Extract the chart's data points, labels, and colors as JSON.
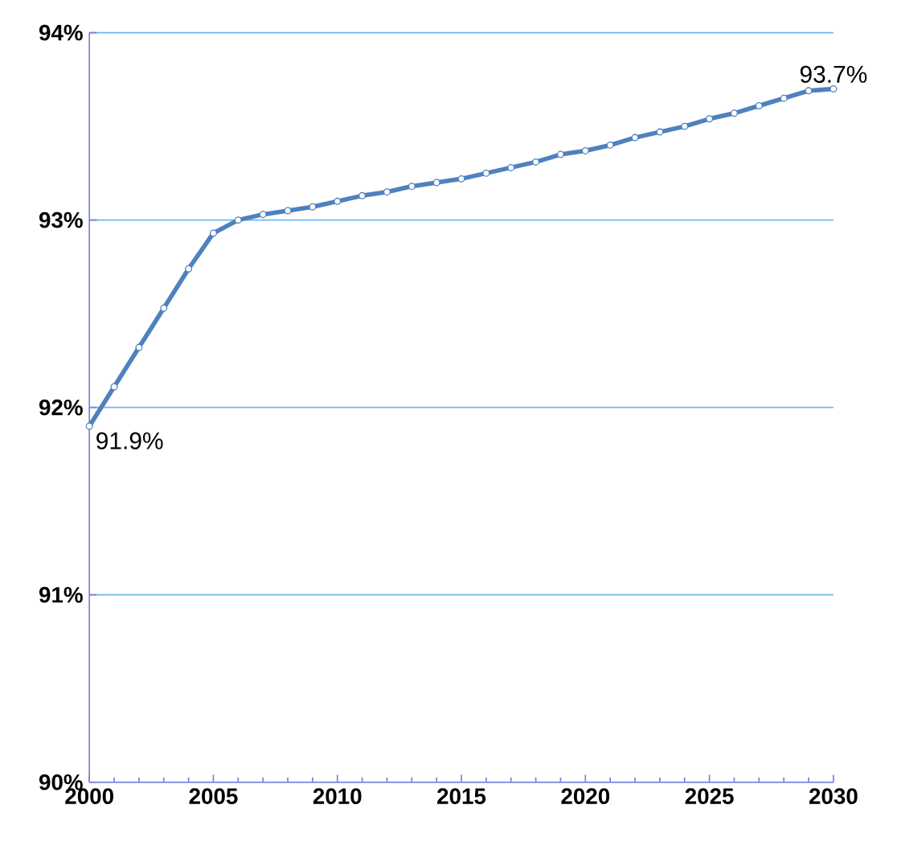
{
  "chart_data": {
    "type": "line",
    "x": [
      2000,
      2001,
      2002,
      2003,
      2004,
      2005,
      2006,
      2007,
      2008,
      2009,
      2010,
      2011,
      2012,
      2013,
      2014,
      2015,
      2016,
      2017,
      2018,
      2019,
      2020,
      2021,
      2022,
      2023,
      2024,
      2025,
      2026,
      2027,
      2028,
      2029,
      2030
    ],
    "series": [
      {
        "color": "#4f81bd",
        "values": [
          91.9,
          92.11,
          92.32,
          92.53,
          92.74,
          92.93,
          93.0,
          93.03,
          93.05,
          93.07,
          93.1,
          93.13,
          93.15,
          93.18,
          93.2,
          93.22,
          93.25,
          93.28,
          93.31,
          93.35,
          93.37,
          93.4,
          93.44,
          93.47,
          93.5,
          93.54,
          93.57,
          93.61,
          93.65,
          93.69,
          93.7
        ]
      }
    ],
    "xlim": [
      2000,
      2030
    ],
    "xticks": [
      2000,
      2005,
      2010,
      2015,
      2020,
      2025,
      2030
    ],
    "ylim": [
      90,
      94
    ],
    "yticks": [
      {
        "value": 90,
        "label": "90%"
      },
      {
        "value": 91,
        "label": "91%"
      },
      {
        "value": 92,
        "label": "92%"
      },
      {
        "value": 93,
        "label": "93%"
      },
      {
        "value": 94,
        "label": "94%"
      }
    ],
    "grid": "y",
    "marker": "circle",
    "line_style": "solid",
    "annotations": [
      {
        "text": "91.9%",
        "x": 2000,
        "y": 91.9
      },
      {
        "text": "93.7%",
        "x": 2030,
        "y": 93.7
      }
    ]
  }
}
